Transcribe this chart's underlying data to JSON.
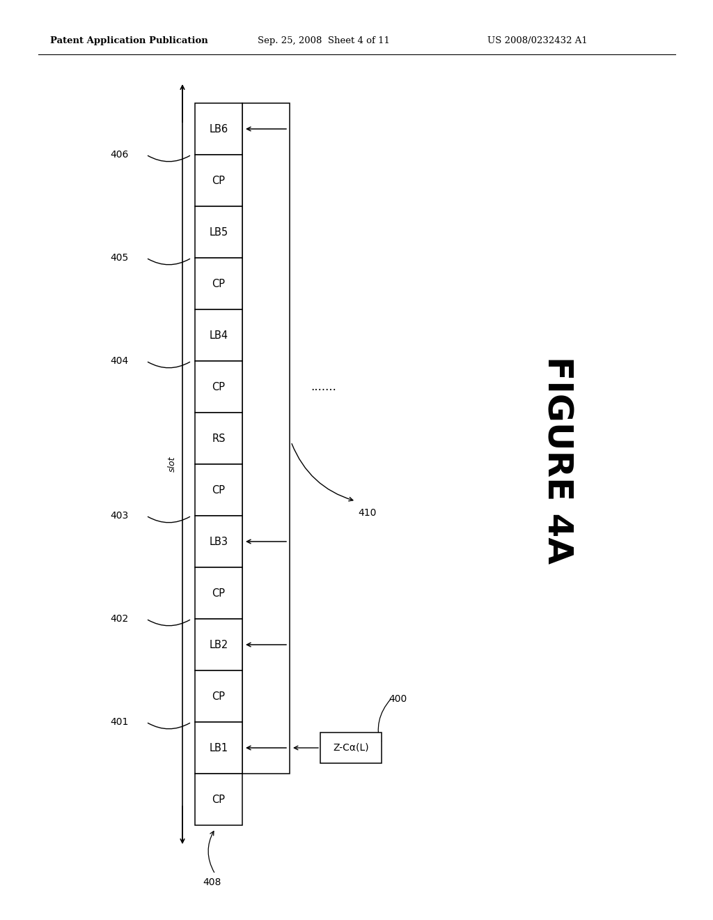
{
  "title_line1": "Patent Application Publication",
  "title_line2": "Sep. 25, 2008  Sheet 4 of 11",
  "title_line3": "US 2008/0232432 A1",
  "figure_label": "FIGURE 4A",
  "bg_color": "#ffffff",
  "cells": [
    "CP",
    "LB1",
    "CP",
    "LB2",
    "CP",
    "LB3",
    "CP",
    "RS",
    "CP",
    "LB4",
    "CP",
    "LB5",
    "CP",
    "LB6"
  ],
  "label_401": "401",
  "label_402": "402",
  "label_403": "403",
  "label_404": "404",
  "label_405": "405",
  "label_406": "406",
  "label_408": "408",
  "label_410": "410",
  "label_400": "400",
  "slot_label": "slot",
  "dots_label": ".......",
  "zc_label": "Z-Cα(L)"
}
